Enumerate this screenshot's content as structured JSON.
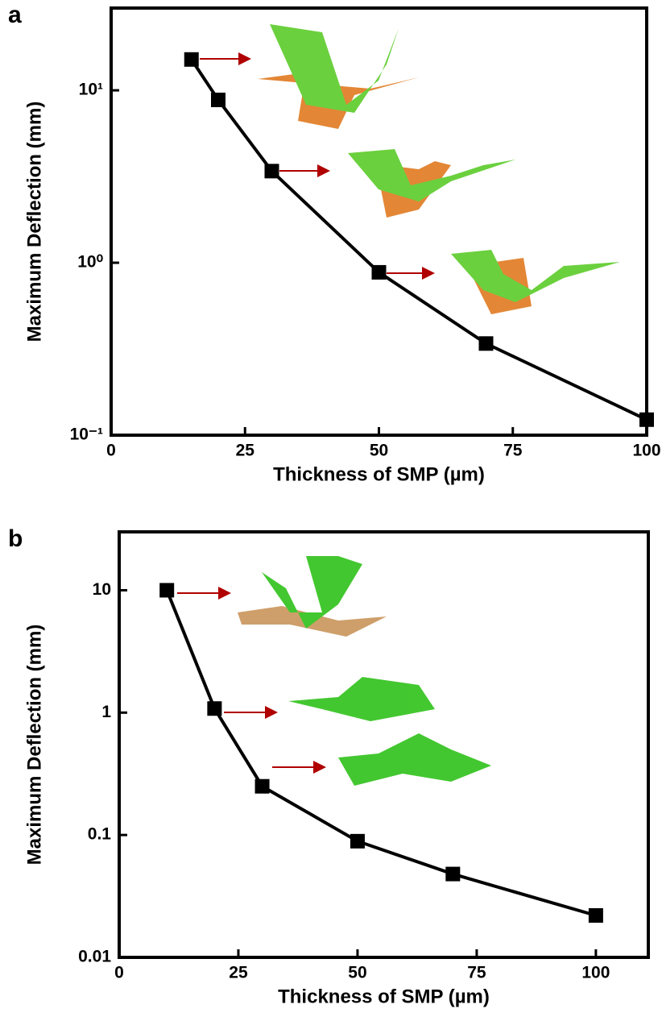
{
  "chart_data": [
    {
      "type": "line",
      "panel_label": "a",
      "x_label": "Thickness of SMP (µm)",
      "y_label": "Maximum Deflection (mm)",
      "log_y": true,
      "color": "#000000",
      "x": [
        15,
        20,
        30,
        50,
        70,
        100
      ],
      "values": [
        15.1,
        8.8,
        3.4,
        0.88,
        0.34,
        0.123
      ],
      "xlim": [
        0,
        100
      ],
      "xticks": [
        0,
        25,
        50,
        75,
        100
      ],
      "ylim": [
        0.1,
        30
      ],
      "yticks": [
        {
          "value": 0.1,
          "label": "10⁻¹"
        },
        {
          "value": 1,
          "label": "10⁰"
        },
        {
          "value": 10,
          "label": "10¹"
        }
      ]
    },
    {
      "type": "line",
      "panel_label": "b",
      "x_label": "Thickness of SMP (µm)",
      "y_label": "Maximum Deflection (mm)",
      "log_y": true,
      "color": "#000000",
      "x": [
        10,
        20,
        30,
        50,
        70,
        100
      ],
      "values": [
        10,
        1.08,
        0.25,
        0.089,
        0.048,
        0.022
      ],
      "xlim": [
        0,
        111
      ],
      "xticks": [
        0,
        25,
        50,
        75,
        100
      ],
      "ylim": [
        0.01,
        30
      ],
      "yticks": [
        0.01,
        0.1,
        1,
        10
      ]
    }
  ]
}
